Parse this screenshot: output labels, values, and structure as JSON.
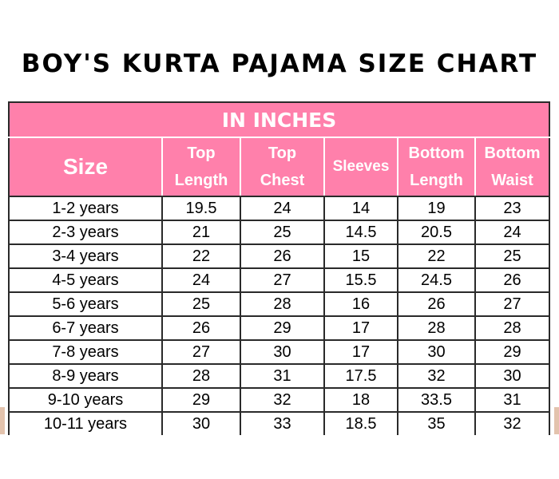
{
  "title": "BOY'S KURTA PAJAMA SIZE CHART",
  "unit_banner": "IN INCHES",
  "colors": {
    "header_background": "#ff80ab",
    "header_text": "#ffffff",
    "grid_lines": "#2a2a2a"
  },
  "columns": {
    "size": "Size",
    "top_length": [
      "Top",
      "Length"
    ],
    "top_chest": [
      "Top",
      "Chest"
    ],
    "sleeves": "Sleeves",
    "bottom_length": [
      "Bottom",
      "Length"
    ],
    "bottom_waist": [
      "Bottom",
      "Waist"
    ]
  },
  "rows": [
    {
      "size": "1-2 years",
      "top_length": "19.5",
      "top_chest": "24",
      "sleeves": "14",
      "bottom_length": "19",
      "bottom_waist": "23"
    },
    {
      "size": "2-3 years",
      "top_length": "21",
      "top_chest": "25",
      "sleeves": "14.5",
      "bottom_length": "20.5",
      "bottom_waist": "24"
    },
    {
      "size": "3-4 years",
      "top_length": "22",
      "top_chest": "26",
      "sleeves": "15",
      "bottom_length": "22",
      "bottom_waist": "25"
    },
    {
      "size": "4-5 years",
      "top_length": "24",
      "top_chest": "27",
      "sleeves": "15.5",
      "bottom_length": "24.5",
      "bottom_waist": "26"
    },
    {
      "size": "5-6 years",
      "top_length": "25",
      "top_chest": "28",
      "sleeves": "16",
      "bottom_length": "26",
      "bottom_waist": "27"
    },
    {
      "size": "6-7 years",
      "top_length": "26",
      "top_chest": "29",
      "sleeves": "17",
      "bottom_length": "28",
      "bottom_waist": "28"
    },
    {
      "size": "7-8 years",
      "top_length": "27",
      "top_chest": "30",
      "sleeves": "17",
      "bottom_length": "30",
      "bottom_waist": "29"
    },
    {
      "size": "8-9 years",
      "top_length": "28",
      "top_chest": "31",
      "sleeves": "17.5",
      "bottom_length": "32",
      "bottom_waist": "30"
    },
    {
      "size": "9-10 years",
      "top_length": "29",
      "top_chest": "32",
      "sleeves": "18",
      "bottom_length": "33.5",
      "bottom_waist": "31"
    },
    {
      "size": "10-11 years",
      "top_length": "30",
      "top_chest": "33",
      "sleeves": "18.5",
      "bottom_length": "35",
      "bottom_waist": "32"
    }
  ]
}
